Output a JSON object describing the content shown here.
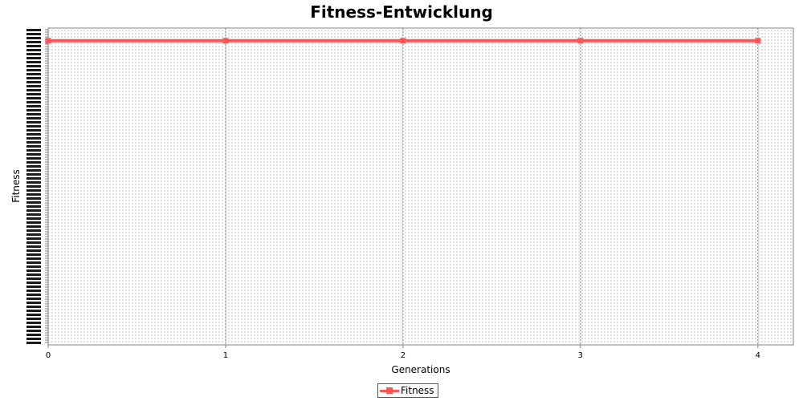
{
  "chart_data": {
    "type": "line",
    "title": "Fitness-Entwicklung",
    "xlabel": "Generations",
    "ylabel": "Fitness",
    "x_ticks": [
      "0",
      "1",
      "2",
      "3",
      "4"
    ],
    "xlim": [
      0,
      4.2
    ],
    "ylim": [
      0,
      1
    ],
    "grid": true,
    "legend_position": "bottom",
    "series": [
      {
        "name": "Fitness",
        "color": "#ff5555",
        "x": [
          0,
          1,
          2,
          3,
          4
        ],
        "y": [
          0.96,
          0.96,
          0.96,
          0.96,
          0.96
        ]
      }
    ]
  }
}
